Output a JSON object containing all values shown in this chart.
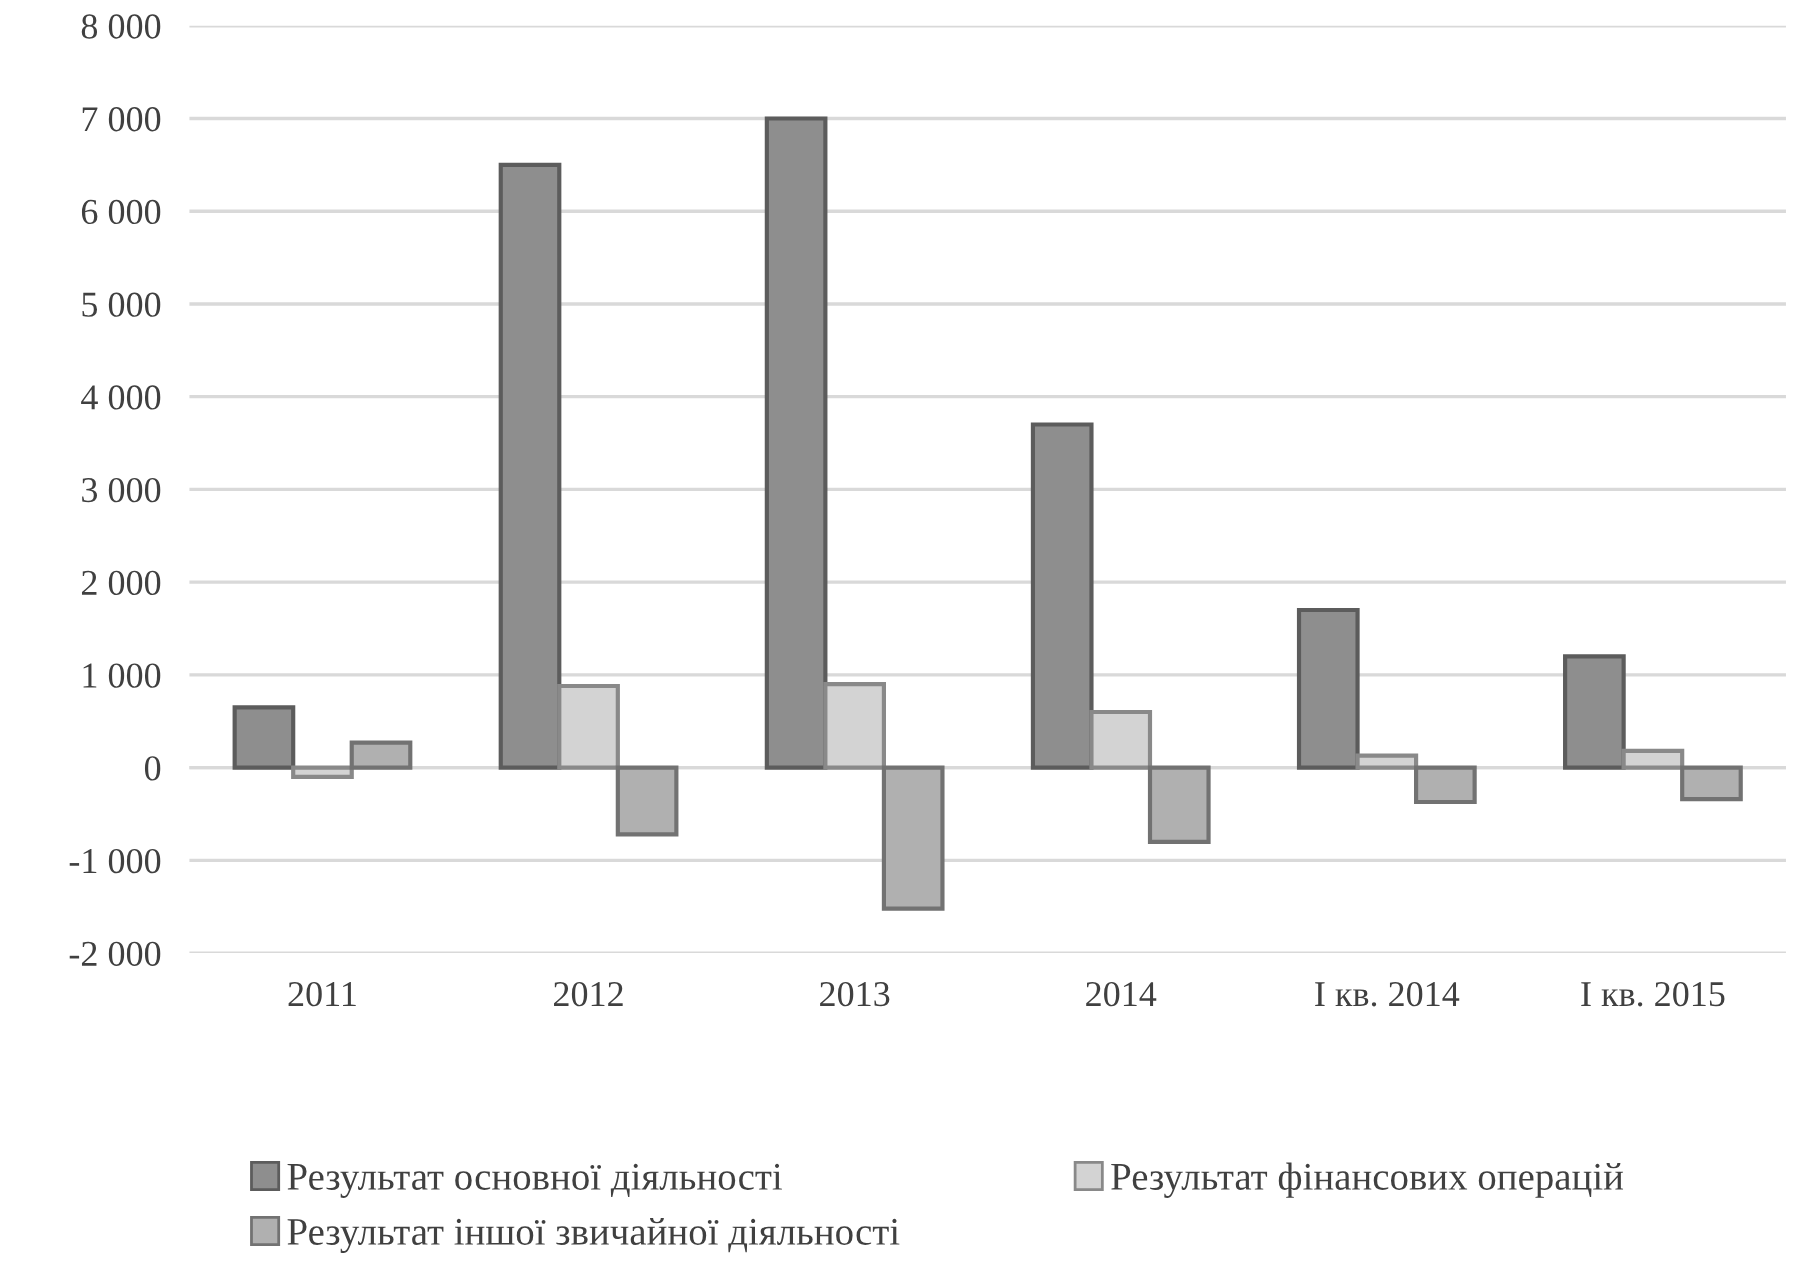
{
  "chart_data": {
    "type": "bar",
    "categories": [
      "2011",
      "2012",
      "2013",
      "2014",
      "I кв. 2014",
      "I кв. 2015"
    ],
    "series": [
      {
        "name": "Результат основної діяльності",
        "color": "#8e8e8e",
        "values": [
          650,
          6500,
          7000,
          3700,
          1700,
          1200
        ]
      },
      {
        "name": "Результат фінансових операцій",
        "color": "#d3d3d3",
        "values": [
          -100,
          880,
          900,
          600,
          130,
          180
        ]
      },
      {
        "name": "Результат іншої звичайної діяльності",
        "color": "#b0b0b0",
        "values": [
          270,
          -720,
          -1520,
          -800,
          -370,
          -340
        ]
      }
    ],
    "ylim": [
      -2000,
      8000
    ],
    "yticks": [
      {
        "value": -2000,
        "label": "-2 000"
      },
      {
        "value": -1000,
        "label": "-1 000"
      },
      0,
      {
        "value": 1000,
        "label": "1 000"
      },
      {
        "value": 2000,
        "label": "2 000"
      },
      {
        "value": 3000,
        "label": "3 000"
      },
      {
        "value": 4000,
        "label": "4 000"
      },
      {
        "value": 5000,
        "label": "5 000"
      },
      {
        "value": 6000,
        "label": "6 000"
      },
      {
        "value": 7000,
        "label": "7 000"
      },
      {
        "value": 8000,
        "label": "8 000"
      }
    ],
    "grid": "y",
    "legend": "bottom left"
  }
}
